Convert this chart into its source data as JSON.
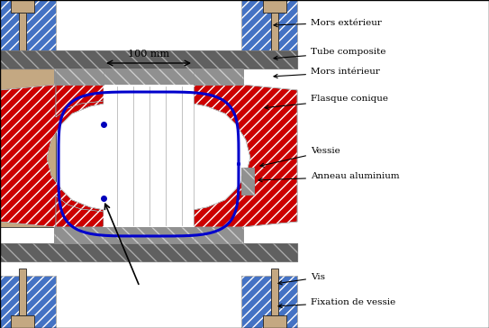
{
  "labels": {
    "mors_ext": "Mors extérieur",
    "tube_composite": "Tube composite",
    "mors_int": "Mors intérieur",
    "flasque": "Flasque conique",
    "vessie": "Vessie",
    "anneau": "Anneau aluminium",
    "vis": "Vis",
    "fixation": "Fixation de vessie",
    "scale": "100 mm"
  },
  "colors": {
    "blue_ext": "#4472C4",
    "gray_dark": "#555555",
    "gray_mid": "#888888",
    "gray_light": "#BBBBBB",
    "red": "#CC0000",
    "beige": "#C4A882",
    "white": "#FFFFFF",
    "black": "#000000",
    "blue_line": "#0000CC",
    "gray_hatch": "#707070"
  },
  "figsize": [
    5.43,
    3.64
  ],
  "dpi": 100
}
